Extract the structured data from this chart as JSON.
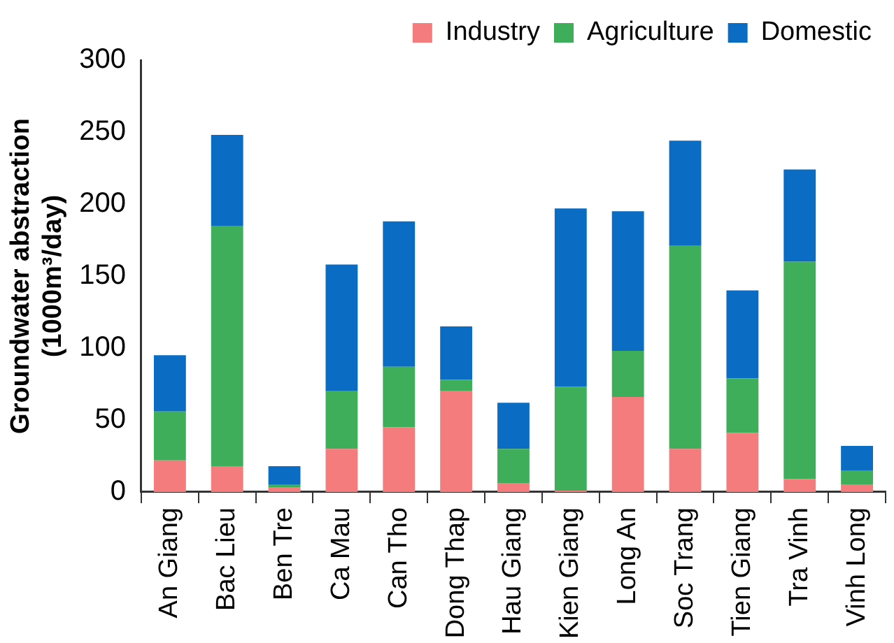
{
  "chart_data": {
    "type": "bar",
    "stacked": true,
    "ylabel": "Groundwater abstraction (1000m³/day)",
    "categories": [
      "An Giang",
      "Bac Lieu",
      "Ben Tre",
      "Ca Mau",
      "Can Tho",
      "Dong Thap",
      "Hau Giang",
      "Kien Giang",
      "Long An",
      "Soc Trang",
      "Tien Giang",
      "Tra Vinh",
      "Vinh Long"
    ],
    "series": [
      {
        "name": "Industry",
        "color": "#f47c7c",
        "values": [
          22,
          18,
          3,
          30,
          45,
          70,
          6,
          1,
          66,
          30,
          41,
          9,
          5
        ]
      },
      {
        "name": "Agriculture",
        "color": "#3fae5a",
        "values": [
          34,
          167,
          2,
          40,
          42,
          8,
          24,
          72,
          32,
          141,
          38,
          151,
          10
        ]
      },
      {
        "name": "Domestic",
        "color": "#0b6cc4",
        "values": [
          39,
          63,
          13,
          88,
          101,
          37,
          32,
          124,
          97,
          73,
          61,
          64,
          17
        ]
      }
    ],
    "ylim": [
      0,
      300
    ],
    "yticks": [
      0,
      50,
      100,
      150,
      200,
      250,
      300
    ],
    "grid": false,
    "legend": "top"
  }
}
